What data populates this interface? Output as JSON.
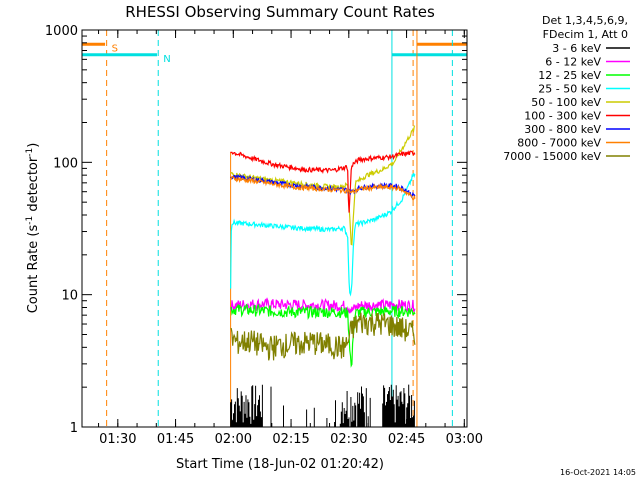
{
  "chart_data": {
    "type": "line",
    "title": "RHESSI Observing Summary Count Rates",
    "xlabel": "Start Time (18-Jun-02 01:20:42)",
    "ylabel_main": "Count Rate (s",
    "ylabel_sup": "-1",
    "ylabel_rest": " detector",
    "ylabel_end": ")",
    "yscale": "log",
    "ylim": [
      1,
      1000
    ],
    "xlim_minutes": [
      0,
      100
    ],
    "x_ticks": [
      {
        "label": "01:30",
        "minute": 9.3
      },
      {
        "label": "01:45",
        "minute": 24.3
      },
      {
        "label": "02:00",
        "minute": 39.3
      },
      {
        "label": "02:15",
        "minute": 54.3
      },
      {
        "label": "02:30",
        "minute": 69.3
      },
      {
        "label": "02:45",
        "minute": 84.3
      },
      {
        "label": "03:00",
        "minute": 99.3
      }
    ],
    "y_ticks": [
      {
        "label": "1",
        "value": 1
      },
      {
        "label": "10",
        "value": 10
      },
      {
        "label": "100",
        "value": 100
      },
      {
        "label": "1000",
        "value": 1000
      }
    ],
    "legend_header": [
      "Det 1,3,4,5,6,9,",
      "FDecim 1, Att 0"
    ],
    "timestamp": "16-Oct-2021 14:05",
    "flag_labels": {
      "saa": "S",
      "night": "N"
    },
    "flags": [
      {
        "name": "saa",
        "color": "#ff8000",
        "bar_y": 780,
        "bar_ranges": [
          [
            0,
            6
          ],
          [
            87,
            100
          ]
        ],
        "dashed_at": [
          6.4,
          86.0
        ]
      },
      {
        "name": "night",
        "color": "#00e0e0",
        "bar_y": 650,
        "bar_ranges": [
          [
            0,
            19.5
          ],
          [
            80.5,
            100
          ]
        ],
        "dashed_at": [
          19.8,
          96.2
        ]
      }
    ],
    "data_window": [
      38.6,
      86.5
    ],
    "series": [
      {
        "name": "3 - 6 keV",
        "color": "#000000",
        "style": "noise"
      },
      {
        "name": "6 - 12 keV",
        "color": "#ff00ff",
        "x": [
          38.8,
          45,
          55,
          67,
          69,
          70,
          72,
          82,
          85
        ],
        "y": [
          8.3,
          8.5,
          8.4,
          8.3,
          8.2,
          7.6,
          8.3,
          8.4,
          8.3
        ]
      },
      {
        "name": "12 - 25 keV",
        "color": "#00ff00",
        "x": [
          38.8,
          45,
          55,
          67,
          69,
          70,
          70.5,
          71,
          72,
          80,
          85
        ],
        "y": [
          7.8,
          7.6,
          7.4,
          7.4,
          7.3,
          2.6,
          5.5,
          7.2,
          7.4,
          7.5,
          7.5
        ]
      },
      {
        "name": "25 - 50 keV",
        "color": "#00ffff",
        "x": [
          38.6,
          38.8,
          45,
          55,
          65,
          68,
          69,
          69.5,
          70,
          70.5,
          71,
          73,
          76,
          80,
          83,
          85,
          86
        ],
        "y": [
          11,
          35,
          34,
          32,
          31,
          32,
          28,
          10,
          10.5,
          25,
          34,
          35,
          37,
          42,
          52,
          68,
          80
        ]
      },
      {
        "name": "50 - 100 keV",
        "color": "#cccc00",
        "x": [
          38.8,
          45,
          55,
          65,
          68,
          69,
          69.5,
          70,
          71,
          74,
          78,
          81,
          84,
          86.5
        ],
        "y": [
          82,
          76,
          70,
          65,
          66,
          68,
          42,
          22,
          70,
          80,
          88,
          100,
          140,
          185
        ]
      },
      {
        "name": "100 - 300 keV",
        "color": "#ff0000",
        "x": [
          38.8,
          42,
          50,
          58,
          65,
          68,
          69,
          69.3,
          70,
          72,
          76,
          80,
          83,
          86
        ],
        "y": [
          120,
          112,
          96,
          88,
          87,
          91,
          93,
          38,
          95,
          105,
          108,
          110,
          115,
          118
        ]
      },
      {
        "name": "300 - 800 keV",
        "color": "#0000ff",
        "x": [
          38.8,
          45,
          55,
          65,
          69,
          70,
          72,
          78,
          82,
          84,
          86
        ],
        "y": [
          78,
          74,
          67,
          63,
          62,
          60,
          64,
          67,
          66,
          62,
          56
        ]
      },
      {
        "name": "800 - 7000 keV",
        "color": "#ff8000",
        "x": [
          38.8,
          45,
          55,
          65,
          69,
          70,
          72,
          78,
          82,
          84,
          86
        ],
        "y": [
          76,
          72,
          65,
          62,
          61,
          59,
          63,
          65,
          64,
          60,
          54
        ]
      },
      {
        "name": "7000 - 15000 keV",
        "color": "#808000",
        "x": [
          38.8,
          40,
          44,
          48,
          52,
          56,
          60,
          64,
          68,
          69,
          70,
          72,
          76,
          80,
          83,
          86
        ],
        "y": [
          4.8,
          4.4,
          4.5,
          4.0,
          4.2,
          4.3,
          4.4,
          4.2,
          4.0,
          4.3,
          5.5,
          6.3,
          6.2,
          6.0,
          5.6,
          5.2
        ]
      }
    ]
  }
}
